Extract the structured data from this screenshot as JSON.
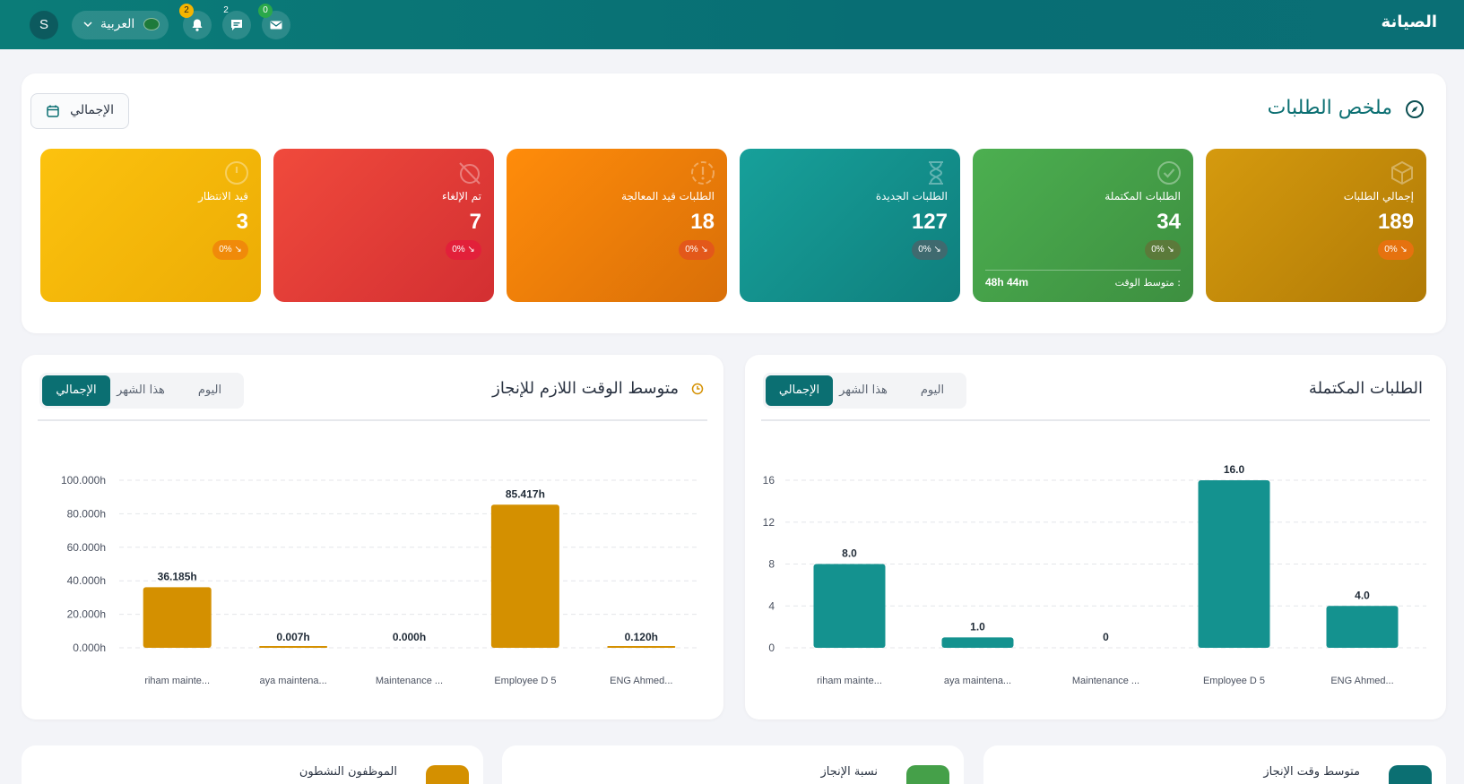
{
  "topbar": {
    "app_title": "الصيانة",
    "avatar_initial": "S",
    "language_label": "العربية",
    "notifications_count": "2",
    "chat_count": "2",
    "mail_count": "0"
  },
  "summary": {
    "title": "ملخص الطلبات",
    "period_button": "الإجمالي",
    "cards": [
      {
        "label": "إجمالي الطلبات",
        "value": "189",
        "trend": "0% ↘",
        "color": "#c98a0a",
        "icon": "box-icon"
      },
      {
        "label": "الطلبات المكتملة",
        "value": "34",
        "trend": "0% ↘",
        "color": "#45a049",
        "icon": "check-circle-icon",
        "avg_label": "متوسط الوقت :",
        "avg_value": "48h 44m"
      },
      {
        "label": "الطلبات الجديدة",
        "value": "127",
        "trend": "0% ↘",
        "color": "#14928f",
        "icon": "hourglass-icon"
      },
      {
        "label": "الطلبات قيد المعالجة",
        "value": "18",
        "trend": "0% ↘",
        "color": "#f07f0a",
        "icon": "alert-circle-icon"
      },
      {
        "label": "تم الإلغاء",
        "value": "7",
        "trend": "0% ↘",
        "color": "#e0383a",
        "icon": "cancel-icon"
      },
      {
        "label": "قيد الانتظار",
        "value": "3",
        "trend": "0% ↘",
        "color": "#f3b50a",
        "icon": "clock-icon"
      }
    ]
  },
  "completed_panel": {
    "title": "الطلبات المكتملة",
    "tabs": [
      "اليوم",
      "هذا الشهر",
      "الإجمالي"
    ],
    "active_tab": "الإجمالي"
  },
  "avgtime_panel": {
    "title": "متوسط الوقت اللازم للإنجاز",
    "tabs": [
      "اليوم",
      "هذا الشهر",
      "الإجمالي"
    ],
    "active_tab": "الإجمالي"
  },
  "bottom": {
    "card1_label": "متوسط وقت الإنجاز",
    "card2_label": "نسبة الإنجاز",
    "card3_label": "الموظفون النشطون"
  },
  "chart_data": [
    {
      "type": "bar",
      "title": "الطلبات المكتملة",
      "categories": [
        "riham mainte...",
        "aya maintena...",
        "Maintenance ...",
        "Employee D 5",
        "ENG Ahmed..."
      ],
      "values": [
        8.0,
        1.0,
        0,
        16.0,
        4.0
      ],
      "value_labels": [
        "8.0",
        "1.0",
        "0",
        "16.0",
        "4.0"
      ],
      "yticks": [
        "0",
        "4",
        "8",
        "12",
        "16"
      ],
      "ylim": [
        0,
        16
      ],
      "color": "#14928f",
      "grid": true
    },
    {
      "type": "bar",
      "title": "متوسط الوقت اللازم للإنجاز",
      "categories": [
        "riham mainte...",
        "aya maintena...",
        "Maintenance ...",
        "Employee D 5",
        "ENG Ahmed..."
      ],
      "values": [
        36.185,
        0.007,
        0.0,
        85.417,
        0.12
      ],
      "value_labels": [
        "36.185h",
        "0.007h",
        "0.000h",
        "85.417h",
        "0.120h"
      ],
      "yticks": [
        "0.000h",
        "20.000h",
        "40.000h",
        "60.000h",
        "80.000h",
        "100.000h"
      ],
      "ylim": [
        0,
        100
      ],
      "color": "#d49000",
      "grid": true
    }
  ]
}
